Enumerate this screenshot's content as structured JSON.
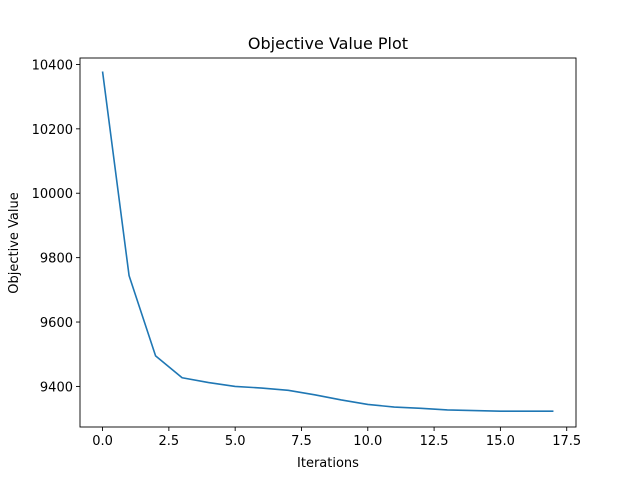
{
  "chart_data": {
    "type": "line",
    "title": "Objective Value Plot",
    "xlabel": "Iterations",
    "ylabel": "Objective Value",
    "xlim": [
      -0.85,
      17.85
    ],
    "ylim": [
      9274,
      10420
    ],
    "xticks": [
      0.0,
      2.5,
      5.0,
      7.5,
      10.0,
      12.5,
      15.0,
      17.5
    ],
    "xtick_labels": [
      "0.0",
      "2.5",
      "5.0",
      "7.5",
      "10.0",
      "12.5",
      "15.0",
      "17.5"
    ],
    "yticks": [
      9400,
      9600,
      9800,
      10000,
      10200,
      10400
    ],
    "ytick_labels": [
      "9400",
      "9600",
      "9800",
      "10000",
      "10200",
      "10400"
    ],
    "grid": false,
    "series": [
      {
        "color": "#1f77b4",
        "x": [
          0,
          1,
          2,
          3,
          4,
          5,
          6,
          7,
          8,
          9,
          10,
          11,
          12,
          13,
          14,
          15,
          16,
          17
        ],
        "y": [
          10378,
          9744,
          9495,
          9427,
          9412,
          9400,
          9395,
          9388,
          9374,
          9358,
          9344,
          9336,
          9332,
          9327,
          9325,
          9323,
          9323,
          9323
        ]
      }
    ]
  }
}
